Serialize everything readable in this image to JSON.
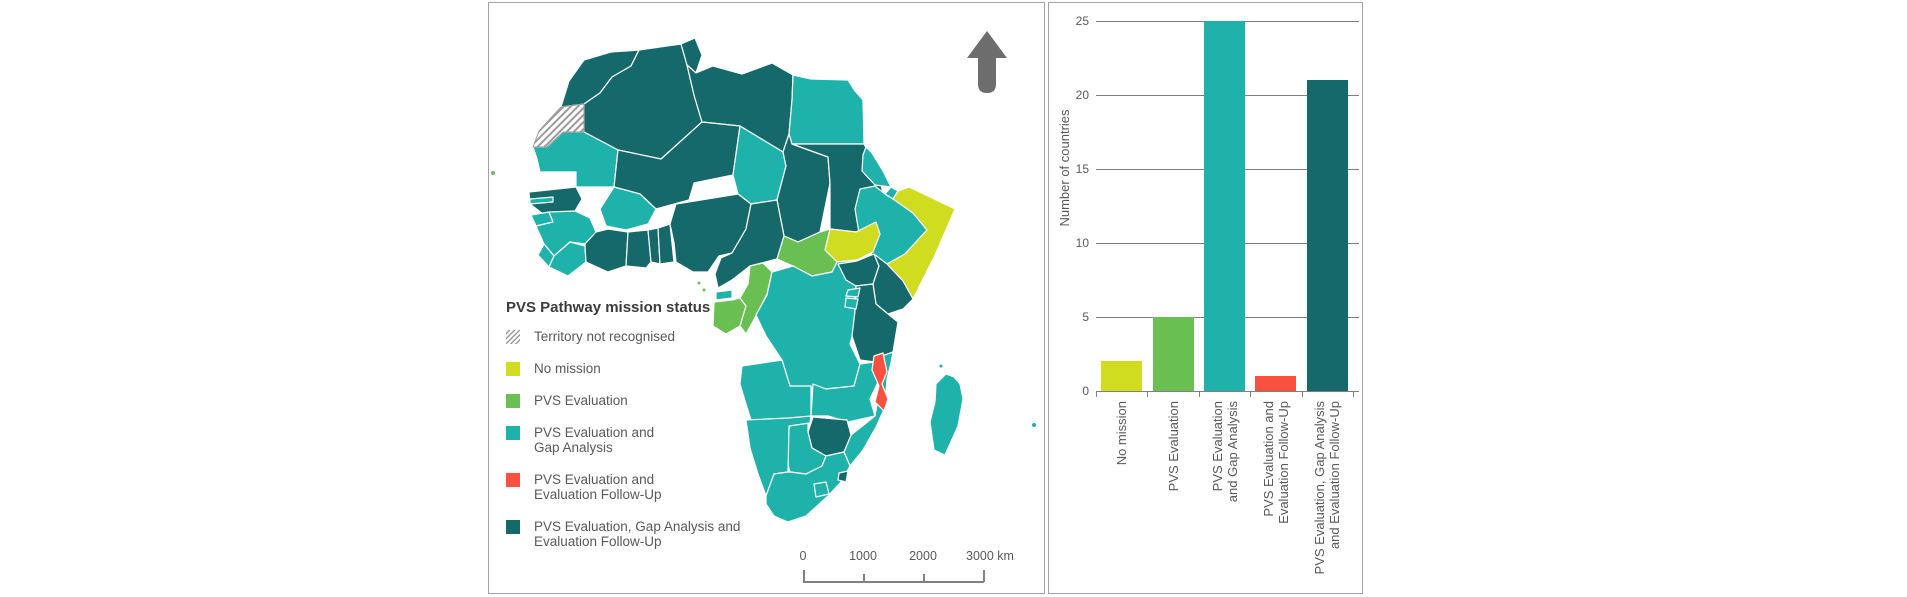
{
  "colors": {
    "no_mission": "#cfdc1f",
    "evaluation": "#6abf52",
    "eval_gap": "#1fb2ab",
    "eval_followup": "#f95140",
    "eval_gap_followup": "#16696a",
    "territory_hatch": "#9b9b9b",
    "axis_line": "#7f7f7f",
    "label_text": "#595959",
    "north_arrow": "#6d6d6d",
    "panel_border": "#a3a3a3"
  },
  "map_panel": {
    "legend": {
      "title": "PVS Pathway mission status",
      "items": [
        {
          "status": "territory_not_recognised",
          "label": "Territory not recognised"
        },
        {
          "status": "no_mission",
          "label": "No mission"
        },
        {
          "status": "evaluation",
          "label": "PVS Evaluation"
        },
        {
          "status": "eval_gap",
          "label": "PVS Evaluation and\nGap Analysis"
        },
        {
          "status": "eval_followup",
          "label": "PVS Evaluation and\nEvaluation Follow-Up"
        },
        {
          "status": "eval_gap_followup",
          "label": "PVS Evaluation, Gap Analysis and\nEvaluation Follow-Up"
        }
      ]
    },
    "scale_bar": {
      "labels": [
        "0",
        "1000",
        "2000",
        "3000 km"
      ]
    }
  },
  "chart_data": {
    "type": "bar",
    "title": "",
    "xlabel": "",
    "ylabel": "Number of countries",
    "ylim": [
      0,
      25
    ],
    "yticks": [
      0,
      5,
      10,
      15,
      20,
      25
    ],
    "grid": true,
    "legend_position": "none",
    "categories": [
      "No mission",
      "PVS Evaluation",
      "PVS Evaluation\nand Gap Analysis",
      "PVS Evaluation and\nEvaluation Follow-Up",
      "PVS Evaluation, Gap Analysis\nand Evaluation Follow-Up"
    ],
    "values": [
      2,
      5,
      25,
      1,
      21
    ],
    "statuses": [
      "no_mission",
      "evaluation",
      "eval_gap",
      "eval_followup",
      "eval_gap_followup"
    ]
  }
}
